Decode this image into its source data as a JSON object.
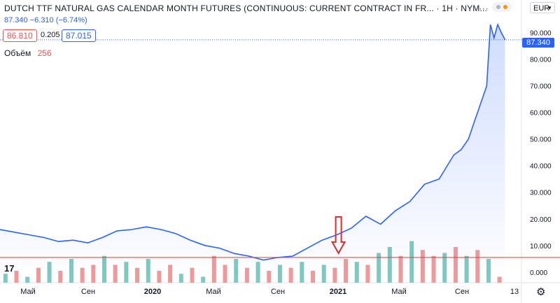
{
  "header": {
    "title": "DUTCH TTF NATURAL GAS CALENDAR MONTH FUTURES (CONTINUOUS: CURRENT CONTRACT IN FR... · 1H · NYM...",
    "last": "87.340",
    "change": "−6.310 (−6.74%)",
    "bid": "86.810",
    "spread": "0.205",
    "ask": "87.015",
    "volume_label": "Объём",
    "volume_value": "256",
    "currency": "EUR",
    "logo": "17",
    "last_price_tag": "87.340"
  },
  "colors": {
    "line": "#2962ff",
    "area": "#2962ff",
    "vol_up": "#80c9c0",
    "vol_down": "#ef9a9a",
    "hline": "#e53935",
    "arrow": "#d32f2f"
  },
  "icons": {
    "settings": "gear-icon",
    "menu": "dots-icon",
    "logo": "tradingview-logo"
  },
  "chart_data": {
    "type": "area",
    "y_axis_ticks": [
      "90.000",
      "80.000",
      "70.000",
      "60.000",
      "50.000",
      "40.000",
      "30.000",
      "20.000",
      "10.000",
      "0.000"
    ],
    "x_axis_ticks": [
      "Май",
      "Сен",
      "2020",
      "Май",
      "Сен",
      "2021",
      "Май",
      "Сен",
      "13"
    ],
    "ylim": [
      -4,
      97
    ],
    "xlim": [
      0,
      28.5
    ],
    "x_unit": "months since start of 2019",
    "series": [
      {
        "x": [
          0,
          0.8,
          1.6,
          2.4,
          3.2,
          4,
          4.8,
          5.6,
          6.4,
          7.2,
          8,
          8.8,
          9.6,
          10.4,
          11.2,
          12,
          12.8,
          13.6,
          14.4,
          15.2,
          16,
          16.8,
          17.6,
          18.4,
          19.2,
          20,
          20.8,
          21.6,
          22.4,
          23.2,
          24,
          24.8,
          25.2,
          25.6,
          26,
          26.3,
          26.6,
          26.8,
          27,
          27.2,
          27.4,
          27.6
        ],
        "values": [
          16,
          15,
          14,
          13,
          11.5,
          12,
          11,
          13,
          15.5,
          16,
          17,
          16,
          14.5,
          12,
          10,
          9,
          7,
          6,
          4.5,
          5.5,
          6,
          9,
          12,
          14,
          16.5,
          21,
          18,
          23,
          26.5,
          33,
          35,
          44,
          46,
          50,
          58,
          64,
          70,
          93,
          88,
          93,
          90,
          87.3
        ]
      }
    ],
    "volume": {
      "x": [
        0.3,
        0.9,
        1.5,
        2.1,
        2.7,
        3.3,
        3.9,
        4.5,
        5.1,
        5.7,
        6.3,
        6.9,
        7.5,
        8.1,
        8.7,
        9.3,
        9.9,
        10.5,
        11.1,
        11.7,
        12.3,
        12.9,
        13.5,
        14.1,
        14.7,
        15.3,
        15.9,
        16.5,
        17.1,
        17.7,
        18.3,
        18.9,
        19.5,
        20.1,
        20.7,
        21.3,
        21.9,
        22.5,
        23.1,
        23.7,
        24.3,
        24.9,
        25.5,
        26.1,
        26.7,
        27.3
      ],
      "values": [
        3,
        4,
        2,
        5,
        7,
        4,
        8,
        5,
        6,
        9,
        6,
        7,
        5,
        8,
        4,
        6,
        3,
        5,
        2,
        9,
        6,
        8,
        5,
        7,
        4,
        6,
        5,
        7,
        4,
        6,
        5,
        8,
        7,
        6,
        10,
        12,
        9,
        14,
        11,
        9,
        10,
        12,
        9,
        11,
        8,
        2
      ],
      "up": [
        true,
        false,
        true,
        false,
        true,
        false,
        true,
        false,
        false,
        true,
        false,
        true,
        false,
        true,
        false,
        false,
        true,
        false,
        true,
        false,
        false,
        true,
        false,
        true,
        false,
        true,
        false,
        true,
        false,
        true,
        false,
        false,
        true,
        false,
        true,
        true,
        false,
        true,
        false,
        false,
        true,
        false,
        true,
        false,
        true,
        false
      ]
    },
    "annotations": [
      {
        "type": "horizontal_line",
        "y": 5.5
      },
      {
        "type": "arrow_down",
        "x": 18.5
      }
    ],
    "grid": false
  }
}
